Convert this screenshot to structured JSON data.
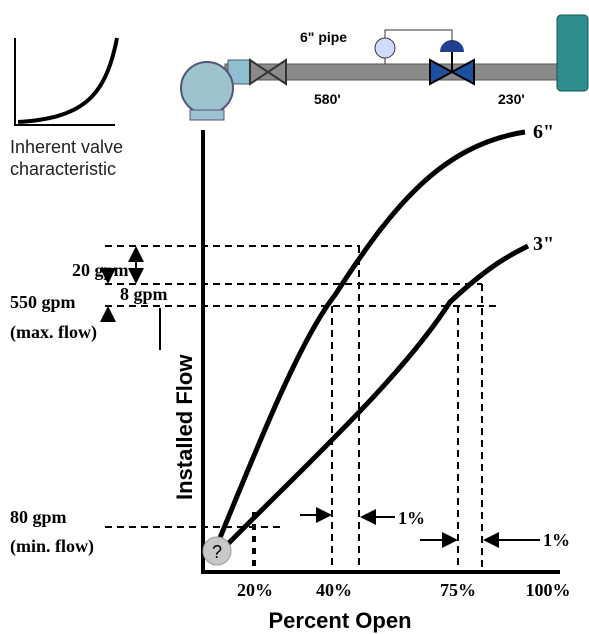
{
  "inset": {
    "caption_line1": "Inherent valve",
    "caption_line2": "characteristic"
  },
  "schematic": {
    "pipe_label": "6\" pipe",
    "length_1": "580'",
    "length_2": "230'"
  },
  "curves": {
    "large": "6\"",
    "small": "3\""
  },
  "flow_labels": {
    "delta_large": "20 gpm",
    "delta_small": "8 gpm",
    "max": "550 gpm",
    "max_note": "(max. flow)",
    "min": "80 gpm",
    "min_note": "(min. flow)"
  },
  "axes": {
    "y_title": "Installed Flow",
    "x_title": "Percent Open",
    "x_labels": [
      "20%",
      "40%",
      "75%",
      "100%"
    ]
  },
  "marks": {
    "unknown": "?",
    "delta_pct_1": "1%",
    "delta_pct_2": "1%"
  }
}
